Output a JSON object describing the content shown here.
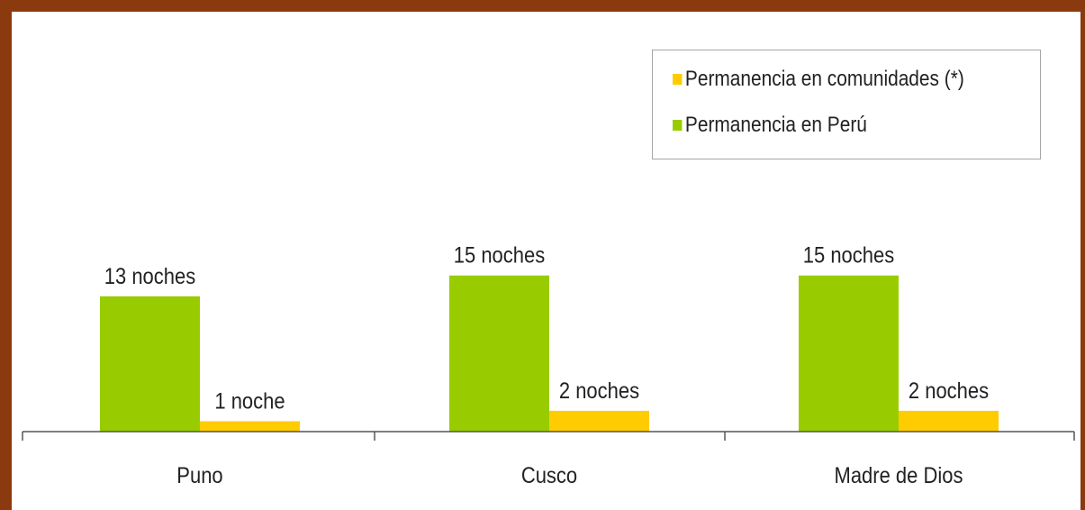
{
  "chart_data": {
    "type": "bar",
    "categories": [
      "Puno",
      "Cusco",
      "Madre de Dios"
    ],
    "series": [
      {
        "name": "Permanencia en Perú",
        "color": "#99cc00",
        "values": [
          13,
          15,
          15
        ],
        "labels": [
          "13 noches",
          "15 noches",
          "15 noches"
        ]
      },
      {
        "name": "Permanencia en comunidades (*)",
        "color": "#ffcc00",
        "values": [
          1,
          2,
          2
        ],
        "labels": [
          "1 noche",
          "2 noches",
          "2 noches"
        ]
      }
    ],
    "legend": {
      "position": "top-right",
      "order": [
        1,
        0
      ]
    },
    "ylim": [
      0,
      20
    ],
    "grid": false
  }
}
